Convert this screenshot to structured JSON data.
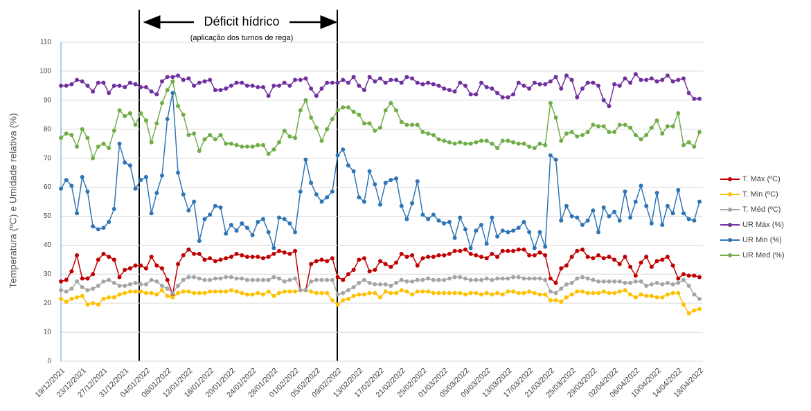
{
  "chart_data": {
    "type": "line",
    "annotation": "Déficit hídrico",
    "annotation_note": "(aplicação dos turnos de rega)",
    "y_label": "Temperatura (ºC)  e Umidade relativa (%)",
    "categories": [
      "19/12/2021",
      null,
      null,
      null,
      "23/12/2021",
      null,
      null,
      null,
      "27/12/2021",
      null,
      null,
      null,
      "31/12/2021",
      null,
      null,
      null,
      "04/01/2022",
      null,
      null,
      null,
      "08/01/2022",
      null,
      null,
      null,
      "12/01/2022",
      null,
      null,
      null,
      "16/01/2022",
      null,
      null,
      null,
      "20/01/2022",
      null,
      null,
      null,
      "24/01/2022",
      null,
      null,
      null,
      "28/01/2022",
      null,
      null,
      null,
      "01/02/2022",
      null,
      null,
      null,
      "05/02/2022",
      null,
      null,
      null,
      "09/02/2022",
      null,
      null,
      null,
      "13/02/2022",
      null,
      null,
      null,
      "17/02/2022",
      null,
      null,
      null,
      "21/02/2022",
      null,
      null,
      null,
      "25/02/2022",
      null,
      null,
      null,
      "01/03/2022",
      null,
      null,
      null,
      "05/03/2022",
      null,
      null,
      null,
      "09/03/2022",
      null,
      null,
      null,
      "13/03/2022",
      null,
      null,
      null,
      "17/03/2022",
      null,
      null,
      null,
      "21/03/2022",
      null,
      null,
      null,
      "25/03/2022",
      null,
      null,
      null,
      "29/03/2022",
      null,
      null,
      null,
      "02/04/2022",
      null,
      null,
      null,
      "06/04/2022",
      null,
      null,
      null,
      "10/04/2022",
      null,
      null,
      null,
      "14/04/2022",
      null,
      null,
      null,
      "18/04/2022"
    ],
    "series": [
      {
        "name": "T. Máx (ºC)",
        "color": "#c00000",
        "values": [
          27.5,
          28,
          31,
          36.5,
          28.5,
          28.5,
          30,
          35,
          37,
          36,
          35,
          29,
          31.5,
          32,
          33,
          33,
          32,
          36,
          33,
          32,
          28,
          23,
          33.5,
          36.5,
          38.5,
          37,
          37,
          35,
          35.5,
          34.5,
          35,
          35.5,
          36,
          37,
          36.5,
          36,
          36,
          36,
          35.5,
          36,
          37,
          38,
          37.5,
          37,
          38,
          24.5,
          24.5,
          33.5,
          34.5,
          35,
          34.5,
          35.5,
          29,
          28,
          30,
          31.5,
          35,
          35.5,
          31,
          31.5,
          34.5,
          33.5,
          32.5,
          34,
          37,
          36,
          36.5,
          33,
          35.5,
          36,
          36,
          36.5,
          36.5,
          37,
          38,
          38,
          38.5,
          37,
          36.5,
          36,
          35.5,
          37,
          36,
          38,
          38,
          38,
          38.5,
          38.5,
          36.5,
          36.5,
          37.5,
          36.5,
          28.5,
          27,
          32,
          33,
          36,
          38,
          38.5,
          36,
          35.5,
          36.5,
          35.5,
          36,
          35,
          33.5,
          36,
          32.5,
          29.5,
          34,
          36,
          32.5,
          34.5,
          35,
          36,
          33,
          28.5,
          30,
          29.5,
          29.5,
          29
        ]
      },
      {
        "name": "T. Min (ºC)",
        "color": "#ffc000",
        "values": [
          21.5,
          20.5,
          21.5,
          22,
          22.5,
          19.5,
          20,
          19.5,
          21.5,
          22,
          22,
          23,
          23.5,
          24,
          24,
          24,
          23.5,
          23.5,
          23,
          24.5,
          22.5,
          22,
          23.5,
          24,
          24,
          23.5,
          23.5,
          23.5,
          24,
          24,
          24,
          24,
          24.5,
          24,
          23.5,
          23,
          23,
          23.5,
          23,
          24,
          22.5,
          23.5,
          24,
          24,
          24,
          24.5,
          24.5,
          24,
          23.5,
          23.5,
          23.5,
          21,
          19.5,
          21,
          21.5,
          22.5,
          23,
          23,
          23.5,
          23.5,
          22,
          24,
          23.5,
          23.5,
          24.5,
          24,
          23,
          24,
          24,
          24,
          23.5,
          23.5,
          23.5,
          23.5,
          23.5,
          23.5,
          23,
          23.5,
          23.5,
          23,
          23.5,
          23,
          23.5,
          23,
          24,
          24,
          23.5,
          23.5,
          24,
          23.5,
          23,
          23,
          21,
          21,
          20.5,
          22,
          23,
          24,
          24,
          23.5,
          23.5,
          23.5,
          24,
          23.5,
          23.5,
          24,
          24.5,
          23,
          22,
          23,
          22.5,
          22.5,
          22,
          22,
          23,
          23.5,
          23.5,
          19.5,
          16.5,
          17.5,
          18
        ]
      },
      {
        "name": "T. Méd (ºC)",
        "color": "#a5a5a5",
        "values": [
          24.5,
          24,
          25,
          27.5,
          25.5,
          24.5,
          25,
          26,
          27.5,
          28,
          27,
          26,
          26,
          26.5,
          27,
          26.5,
          26.5,
          28,
          27.5,
          26,
          25,
          23.5,
          26,
          28,
          29,
          29,
          28.5,
          28,
          28,
          28.5,
          28.5,
          29,
          29,
          28.5,
          28.5,
          28,
          28,
          28,
          28,
          28,
          29,
          28.5,
          27.5,
          28,
          28.5,
          24.5,
          24.5,
          27.5,
          28,
          28,
          28,
          28,
          23,
          23.5,
          24.5,
          25.5,
          27,
          28,
          27,
          26.5,
          26.5,
          26.5,
          26,
          27,
          28,
          27.5,
          27.5,
          28,
          28,
          28.5,
          28,
          28,
          28,
          28.5,
          29,
          29,
          28.5,
          28,
          28,
          28,
          28.5,
          28,
          28.5,
          28.5,
          28.5,
          29,
          29,
          28.5,
          28.5,
          28.5,
          28.5,
          28,
          24,
          23.5,
          25,
          26.5,
          27,
          28.5,
          29,
          28.5,
          28,
          27.5,
          27.5,
          27.5,
          27.5,
          27.5,
          27,
          27,
          27.5,
          27.5,
          26,
          26.5,
          27,
          26.5,
          27,
          26.5,
          27,
          28,
          26,
          23,
          21.5
        ]
      },
      {
        "name": "UR Máx (%)",
        "color": "#7030a0",
        "values": [
          95,
          95,
          95.5,
          97,
          96.5,
          95,
          93,
          96,
          96,
          92.5,
          95,
          95,
          94.5,
          96,
          95.5,
          94.5,
          94.5,
          93,
          92,
          96.5,
          98,
          98,
          98.5,
          97,
          97.5,
          95,
          96,
          96.5,
          97,
          93.5,
          93.5,
          94,
          95,
          96,
          96,
          95,
          95,
          94.5,
          94.5,
          91.5,
          95,
          95,
          96,
          95,
          97,
          97,
          97.5,
          94,
          91.5,
          94,
          96,
          96,
          96,
          97,
          96,
          98,
          95,
          93.5,
          98,
          96.5,
          97.5,
          96,
          97,
          97,
          96,
          98,
          97.5,
          96,
          95.5,
          96,
          95.5,
          95,
          94,
          93.5,
          93,
          96,
          95,
          92,
          92,
          96,
          94.5,
          94,
          92.5,
          91,
          91,
          92,
          96,
          95,
          94,
          96,
          95.5,
          95.5,
          96.5,
          98,
          94,
          98.5,
          97,
          91,
          94,
          96,
          96,
          95,
          90,
          88,
          95.5,
          95,
          97.5,
          96,
          99,
          97,
          97,
          97.5,
          96.5,
          97,
          98.5,
          96.5,
          97,
          97.5,
          92.5,
          90.5,
          90.5
        ]
      },
      {
        "name": "UR Min (%)",
        "color": "#2e75b6",
        "values": [
          59.5,
          62.5,
          60.5,
          51,
          63.5,
          58.5,
          46.5,
          45.5,
          46,
          48,
          52.5,
          75,
          68.5,
          67.5,
          59.5,
          62.5,
          63.5,
          51,
          58,
          64,
          83.5,
          92.5,
          65,
          57.5,
          52,
          55,
          41.5,
          49,
          50.5,
          53.5,
          53,
          44,
          47,
          45,
          47.5,
          46,
          43.5,
          48,
          49,
          44.5,
          39,
          49.5,
          49,
          47.5,
          44.5,
          58.5,
          69.5,
          61.5,
          57.5,
          55,
          56.5,
          58.5,
          71,
          73,
          67.5,
          65.5,
          56.5,
          55,
          65.5,
          61,
          54,
          61.5,
          62.5,
          63,
          53.5,
          49,
          54.5,
          62,
          50.5,
          49,
          50.5,
          48.5,
          47.5,
          48,
          42.5,
          49.5,
          45.5,
          39,
          45,
          47,
          40.5,
          49.5,
          43,
          45,
          44.5,
          45,
          46,
          48,
          44.5,
          39,
          44.5,
          39.5,
          71,
          69.5,
          48.5,
          53.5,
          50,
          49.5,
          47,
          48.5,
          52,
          44.5,
          53,
          50,
          51.5,
          48.5,
          58.5,
          49.5,
          55,
          60.5,
          53.5,
          47.5,
          58,
          47,
          53.5,
          51,
          59,
          51,
          49,
          48.5,
          55
        ]
      },
      {
        "name": "UR Med (%)",
        "color": "#70ad47",
        "values": [
          77,
          78.5,
          78,
          74,
          80,
          77,
          70,
          74,
          75,
          73.5,
          79.5,
          86.5,
          84.5,
          85.5,
          81.5,
          85.5,
          83,
          75.5,
          82,
          89,
          93.5,
          96.5,
          88,
          85,
          78,
          78.5,
          72.5,
          76.5,
          78,
          76.5,
          78,
          75,
          75,
          74.5,
          74,
          74,
          74,
          74.5,
          74.5,
          71.5,
          73,
          75.5,
          79.5,
          77.5,
          77,
          86.5,
          90,
          84,
          80.5,
          76,
          80,
          83.5,
          86.5,
          87.5,
          87.5,
          86,
          85,
          82,
          82,
          79.5,
          80.5,
          86.5,
          89,
          86.5,
          82.5,
          81.5,
          81.5,
          81.5,
          79,
          78.5,
          78,
          76.5,
          76,
          75.5,
          75,
          75.5,
          75,
          75,
          75.5,
          76,
          76,
          75,
          73.5,
          76,
          76,
          75.5,
          75,
          75,
          74,
          73.5,
          75,
          74.5,
          89,
          84,
          76,
          78.5,
          79,
          77.5,
          78,
          79,
          81.5,
          81,
          81,
          79,
          79,
          81.5,
          81.5,
          80.5,
          78,
          76.5,
          78,
          80.5,
          83,
          78.5,
          81,
          81,
          85.5,
          74.5,
          75.5,
          74,
          79
        ]
      }
    ],
    "ylim": [
      0,
      110
    ],
    "yticks": [
      0,
      10,
      20,
      30,
      40,
      50,
      60,
      70,
      80,
      90,
      100,
      110
    ],
    "grid": true,
    "legend": "right"
  }
}
